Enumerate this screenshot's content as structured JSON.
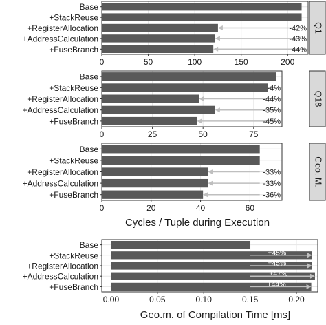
{
  "colors": {
    "bar": "#595959",
    "arrow": "#bfbfbf",
    "grid": "#e6e6e6",
    "strip_fill": "#d9d9d9",
    "text": "#1a1a1a",
    "axis": "#333333"
  },
  "chart_data": [
    {
      "type": "bar",
      "orientation": "horizontal",
      "facet": "Q1",
      "categories": [
        "Base",
        "+StackReuse",
        "+RegisterAllocation",
        "+AddressCalculation",
        "+FuseBranch"
      ],
      "values": [
        215,
        215,
        125,
        122,
        120
      ],
      "annotations": [
        "",
        "",
        "-42%",
        "-43%",
        "-44%"
      ],
      "xlim": [
        0,
        222
      ],
      "xticks": [
        0,
        50,
        100,
        150,
        200
      ],
      "tick_labels": [
        "0",
        "50",
        "100",
        "150",
        "200"
      ],
      "grid": true
    },
    {
      "type": "bar",
      "orientation": "horizontal",
      "facet": "Q18",
      "categories": [
        "Base",
        "+StackReuse",
        "+RegisterAllocation",
        "+AddressCalculation",
        "+FuseBranch"
      ],
      "values": [
        86,
        82,
        48,
        56,
        47
      ],
      "annotations": [
        "",
        "-4%",
        "-44%",
        "-35%",
        "-45%"
      ],
      "xlim": [
        0,
        89
      ],
      "xticks": [
        0,
        25,
        50,
        75
      ],
      "tick_labels": [
        "0",
        "25",
        "50",
        "75"
      ],
      "grid": true
    },
    {
      "type": "bar",
      "orientation": "horizontal",
      "facet": "Geo. M.",
      "categories": [
        "Base",
        "+StackReuse",
        "+RegisterAllocation",
        "+AddressCalculation",
        "+FuseBranch"
      ],
      "values": [
        64,
        64,
        43,
        43,
        41
      ],
      "annotations": [
        "",
        "",
        "-33%",
        "-33%",
        "-36%"
      ],
      "xlim": [
        0,
        73
      ],
      "xticks": [
        0,
        20,
        40,
        60
      ],
      "tick_labels": [
        "0",
        "20",
        "40",
        "60"
      ],
      "grid": true,
      "xlabel": "Cycles / Tuple during Execution"
    },
    {
      "type": "bar",
      "orientation": "horizontal",
      "categories": [
        "Base",
        "+StackReuse",
        "+RegisterAllocation",
        "+AddressCalculation",
        "+FuseBranch"
      ],
      "values": [
        0.15,
        0.217,
        0.217,
        0.22,
        0.216
      ],
      "annotations": [
        "",
        "+45%",
        "+45%",
        "+47%",
        "+44%"
      ],
      "xlim": [
        -0.01,
        0.223
      ],
      "xticks": [
        0.0,
        0.05,
        0.1,
        0.15,
        0.2
      ],
      "tick_labels": [
        "0.00",
        "0.05",
        "0.10",
        "0.15",
        "0.20"
      ],
      "grid": true,
      "xlabel": "Geo.m. of Compilation Time [ms]"
    }
  ]
}
